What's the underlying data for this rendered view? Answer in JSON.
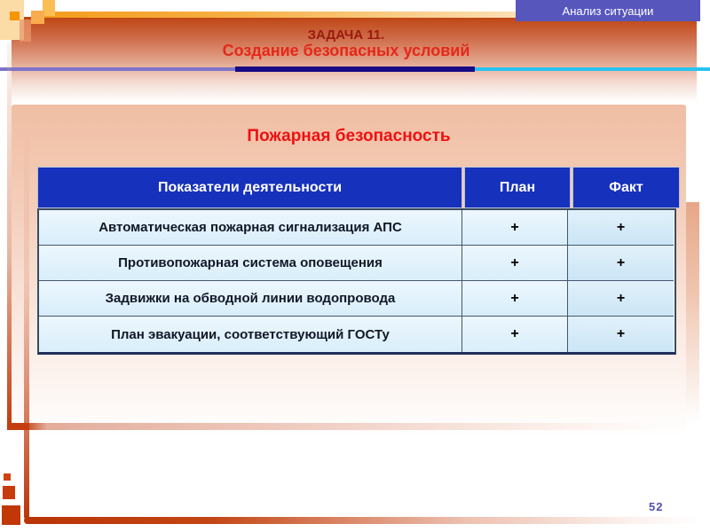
{
  "badge": {
    "label": "Анализ ситуации"
  },
  "header": {
    "title_line1": "ЗАДАЧА 11.",
    "title_line2": "Создание безопасных условий"
  },
  "panel": {
    "heading": "Пожарная безопасность"
  },
  "table": {
    "columns": [
      "Показатели деятельности",
      "План",
      "Факт"
    ],
    "rows": [
      {
        "label": "Автоматическая пожарная сигнализация АПС",
        "plan": "+",
        "fact": "+"
      },
      {
        "label": "Противопожарная система оповещения",
        "plan": "+",
        "fact": "+"
      },
      {
        "label": "Задвижки на обводной линии водопровода",
        "plan": "+",
        "fact": "+"
      },
      {
        "label": "План эвакуации, соответствующий ГОСТу",
        "plan": "+",
        "fact": "+"
      }
    ]
  },
  "footer": {
    "page_number": "52"
  },
  "colors": {
    "badge_bg": "#5756BD",
    "band_top": "#BE4513",
    "divider_purple": "#7C74C9",
    "divider_navy": "#170A85",
    "divider_cyan": "#27C3F0",
    "table_header_bg": "#1631BC",
    "table_row_bg": "#D8EEFA",
    "accent_red": "#C43D0F",
    "title_dark_red": "#9A1A0F",
    "title_bright_red": "#E52819",
    "heading_red": "#EF1010"
  }
}
